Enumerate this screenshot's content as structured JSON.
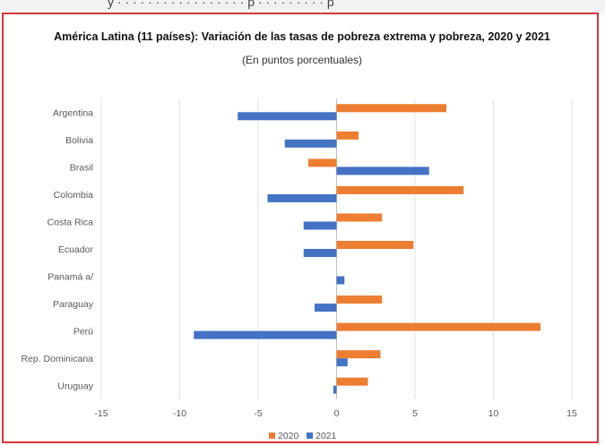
{
  "chart_data": {
    "type": "bar",
    "orientation": "horizontal",
    "title": "América Latina (11 países): Variación de las tasas de pobreza extrema y pobreza, 2020 y 2021",
    "subtitle": "(En puntos porcentuales)",
    "categories": [
      "Argentina",
      "Bolivia",
      "Brasil",
      "Colombia",
      "Costa Rica",
      "Ecuador",
      "Panamá a/",
      "Paraguay",
      "Perú",
      "Rep. Dominicana",
      "Uruguay"
    ],
    "series": [
      {
        "name": "2020",
        "color": "#ed7d31",
        "values": [
          7.0,
          1.4,
          -1.8,
          8.1,
          2.9,
          4.9,
          0,
          2.9,
          13.0,
          2.8,
          2.0
        ]
      },
      {
        "name": "2021",
        "color": "#4472c4",
        "values": [
          -6.3,
          -3.3,
          5.9,
          -4.4,
          -2.1,
          -2.1,
          0.5,
          -1.4,
          -9.1,
          0.7,
          -0.2
        ]
      }
    ],
    "xlim": [
      -15,
      15
    ],
    "xticks": [
      -15,
      -10,
      -5,
      0,
      5,
      10,
      15
    ],
    "grid": "vertical",
    "legend_position": "bottom"
  }
}
